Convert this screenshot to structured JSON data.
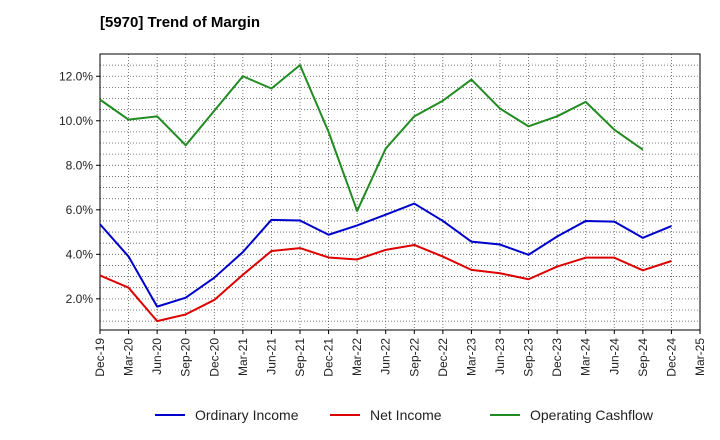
{
  "chart_data": {
    "type": "line",
    "title": "[5970]  Trend of Margin",
    "x": [
      "Dec-19",
      "Mar-20",
      "Jun-20",
      "Sep-20",
      "Dec-20",
      "Mar-21",
      "Jun-21",
      "Sep-21",
      "Dec-21",
      "Mar-22",
      "Jun-22",
      "Sep-22",
      "Dec-22",
      "Mar-23",
      "Jun-23",
      "Sep-23",
      "Dec-23",
      "Mar-24",
      "Jun-24",
      "Sep-24",
      "Dec-24",
      "Mar-25"
    ],
    "y_ticks": [
      "2.0%",
      "4.0%",
      "6.0%",
      "8.0%",
      "10.0%",
      "12.0%"
    ],
    "ylim": [
      0.6,
      13.0
    ],
    "grid": true,
    "legend_position": "bottom",
    "series": [
      {
        "name": "Ordinary Income",
        "color": "#0000cc",
        "values": [
          5.35,
          3.9,
          1.65,
          2.05,
          2.95,
          4.1,
          5.55,
          5.52,
          4.88,
          5.3,
          5.78,
          6.28,
          5.5,
          4.57,
          4.44,
          3.98,
          4.8,
          5.5,
          5.47,
          4.74,
          5.27,
          null
        ]
      },
      {
        "name": "Net Income",
        "color": "#dd0000",
        "values": [
          3.05,
          2.5,
          1.0,
          1.3,
          1.95,
          3.08,
          4.15,
          4.28,
          3.86,
          3.77,
          4.2,
          4.42,
          3.9,
          3.3,
          3.15,
          2.88,
          3.45,
          3.85,
          3.85,
          3.28,
          3.7,
          null
        ]
      },
      {
        "name": "Operating Cashflow",
        "color": "#228b22",
        "values": [
          10.95,
          10.05,
          10.2,
          8.9,
          10.45,
          12.0,
          11.45,
          12.5,
          9.5,
          5.95,
          8.75,
          10.2,
          10.9,
          11.85,
          10.55,
          9.75,
          10.2,
          10.85,
          9.6,
          8.7,
          null,
          null
        ]
      }
    ]
  }
}
